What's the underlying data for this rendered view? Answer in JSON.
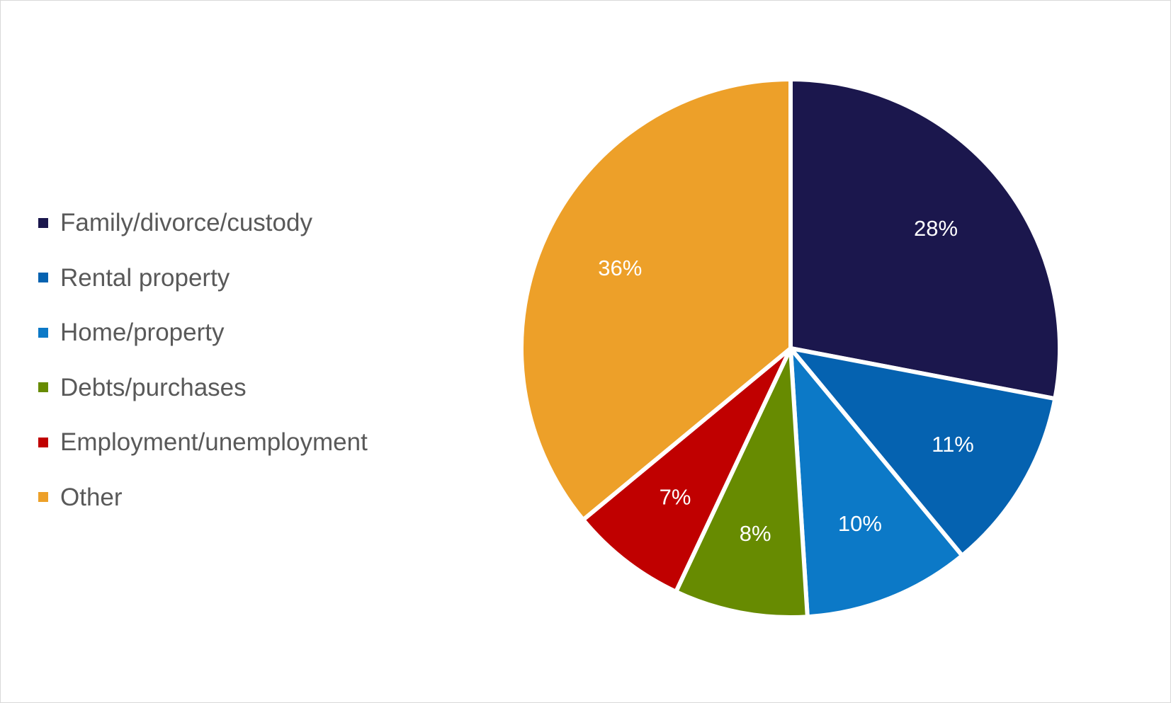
{
  "chart_data": {
    "type": "pie",
    "categories": [
      "Family/divorce/custody",
      "Rental property",
      "Home/property",
      "Debts/purchases",
      "Employment/unemployment",
      "Other"
    ],
    "values": [
      28,
      11,
      10,
      8,
      7,
      36
    ],
    "data_labels": [
      "28%",
      "11%",
      "10%",
      "8%",
      "7%",
      "36%"
    ],
    "colors": [
      "#1b174d",
      "#0562b0",
      "#0c79c7",
      "#678b01",
      "#c00000",
      "#eda029"
    ],
    "title": "",
    "legend": "left",
    "start_angle": "12 o'clock, clockwise"
  }
}
